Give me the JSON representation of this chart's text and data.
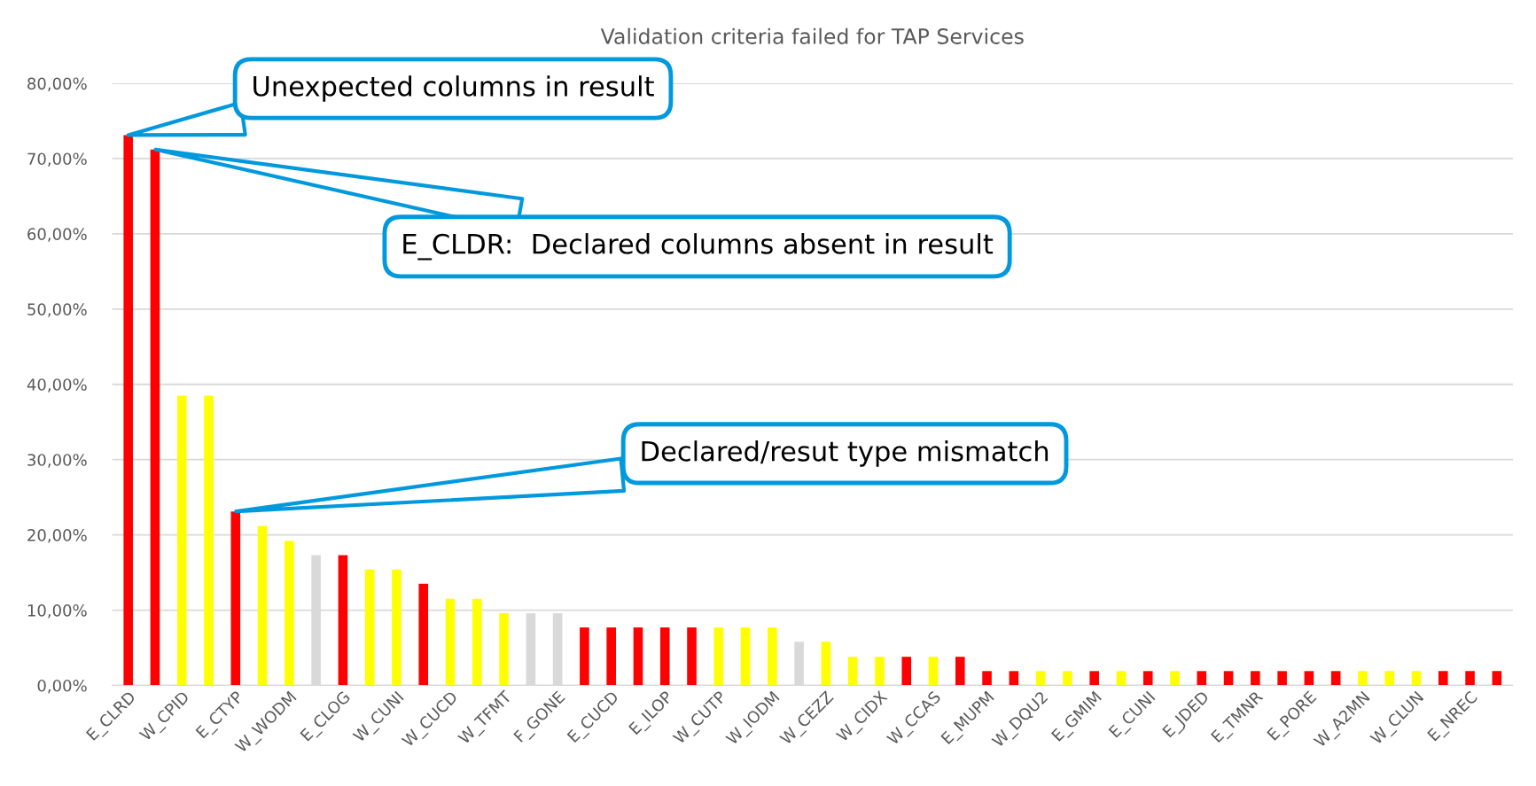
{
  "chart_data": {
    "type": "bar",
    "title": "Validation criteria failed for TAP Services",
    "categories": [
      "E_CLRD",
      null,
      "W_CPID",
      null,
      "E_CTYP",
      null,
      "W_WODM",
      null,
      "E_CLOG",
      null,
      "W_CUNI",
      null,
      "W_CUCD",
      null,
      "W_TFMT",
      null,
      "F_GONE",
      null,
      "E_CUCD",
      null,
      "E_ILOP",
      null,
      "W_CUTP",
      null,
      "W_IODM",
      null,
      "W_CEZZ",
      null,
      "W_CIDX",
      null,
      "W_CCAS",
      null,
      "E_MUPM",
      null,
      "W_DQU2",
      null,
      "E_GMIM",
      null,
      "E_CUNI",
      null,
      "E_JDED",
      null,
      "E_TMNR",
      null,
      "E_PORE",
      null,
      "W_A2MN",
      null,
      "W_CLUN",
      null,
      "E_NREC",
      null
    ],
    "values": [
      73.1,
      71.2,
      38.5,
      38.5,
      23.1,
      21.2,
      19.2,
      17.3,
      17.3,
      15.4,
      15.4,
      13.5,
      11.5,
      11.5,
      9.6,
      9.6,
      9.6,
      7.7,
      7.7,
      7.7,
      7.7,
      7.7,
      7.7,
      7.7,
      7.7,
      5.8,
      5.8,
      3.8,
      3.8,
      3.8,
      3.8,
      3.8,
      1.9,
      1.9,
      1.9,
      1.9,
      1.9,
      1.9,
      1.9,
      1.9,
      1.9,
      1.9,
      1.9,
      1.9,
      1.9,
      1.9,
      1.9,
      1.9,
      1.9,
      1.9,
      1.9,
      1.9
    ],
    "colors": [
      "#ff0000",
      "#ff0000",
      "#ffff00",
      "#ffff00",
      "#ff0000",
      "#ffff00",
      "#ffff00",
      "#d9d9d9",
      "#ff0000",
      "#ffff00",
      "#ffff00",
      "#ff0000",
      "#ffff00",
      "#ffff00",
      "#ffff00",
      "#d9d9d9",
      "#d9d9d9",
      "#ff0000",
      "#ff0000",
      "#ff0000",
      "#ff0000",
      "#ff0000",
      "#ffff00",
      "#ffff00",
      "#ffff00",
      "#d9d9d9",
      "#ffff00",
      "#ffff00",
      "#ffff00",
      "#ff0000",
      "#ffff00",
      "#ff0000",
      "#ff0000",
      "#ff0000",
      "#ffff00",
      "#ffff00",
      "#ff0000",
      "#ffff00",
      "#ff0000",
      "#ffff00",
      "#ff0000",
      "#ff0000",
      "#ff0000",
      "#ff0000",
      "#ff0000",
      "#ff0000",
      "#ffff00",
      "#ffff00",
      "#ffff00",
      "#ff0000",
      "#ff0000",
      "#ff0000"
    ],
    "ylim": [
      0,
      80
    ],
    "yticks": [
      {
        "value": 0,
        "label": "0,00%"
      },
      {
        "value": 10,
        "label": "10,00%"
      },
      {
        "value": 20,
        "label": "20,00%"
      },
      {
        "value": 30,
        "label": "30,00%"
      },
      {
        "value": 40,
        "label": "40,00%"
      },
      {
        "value": 50,
        "label": "50,00%"
      },
      {
        "value": 60,
        "label": "60,00%"
      },
      {
        "value": 70,
        "label": "70,00%"
      },
      {
        "value": 80,
        "label": "80,00%"
      }
    ],
    "grid": "y",
    "annotations": [
      "Unexpected columns in result",
      "E_CLDR:  Declared columns absent in result",
      "Declared/resut type mismatch"
    ]
  }
}
